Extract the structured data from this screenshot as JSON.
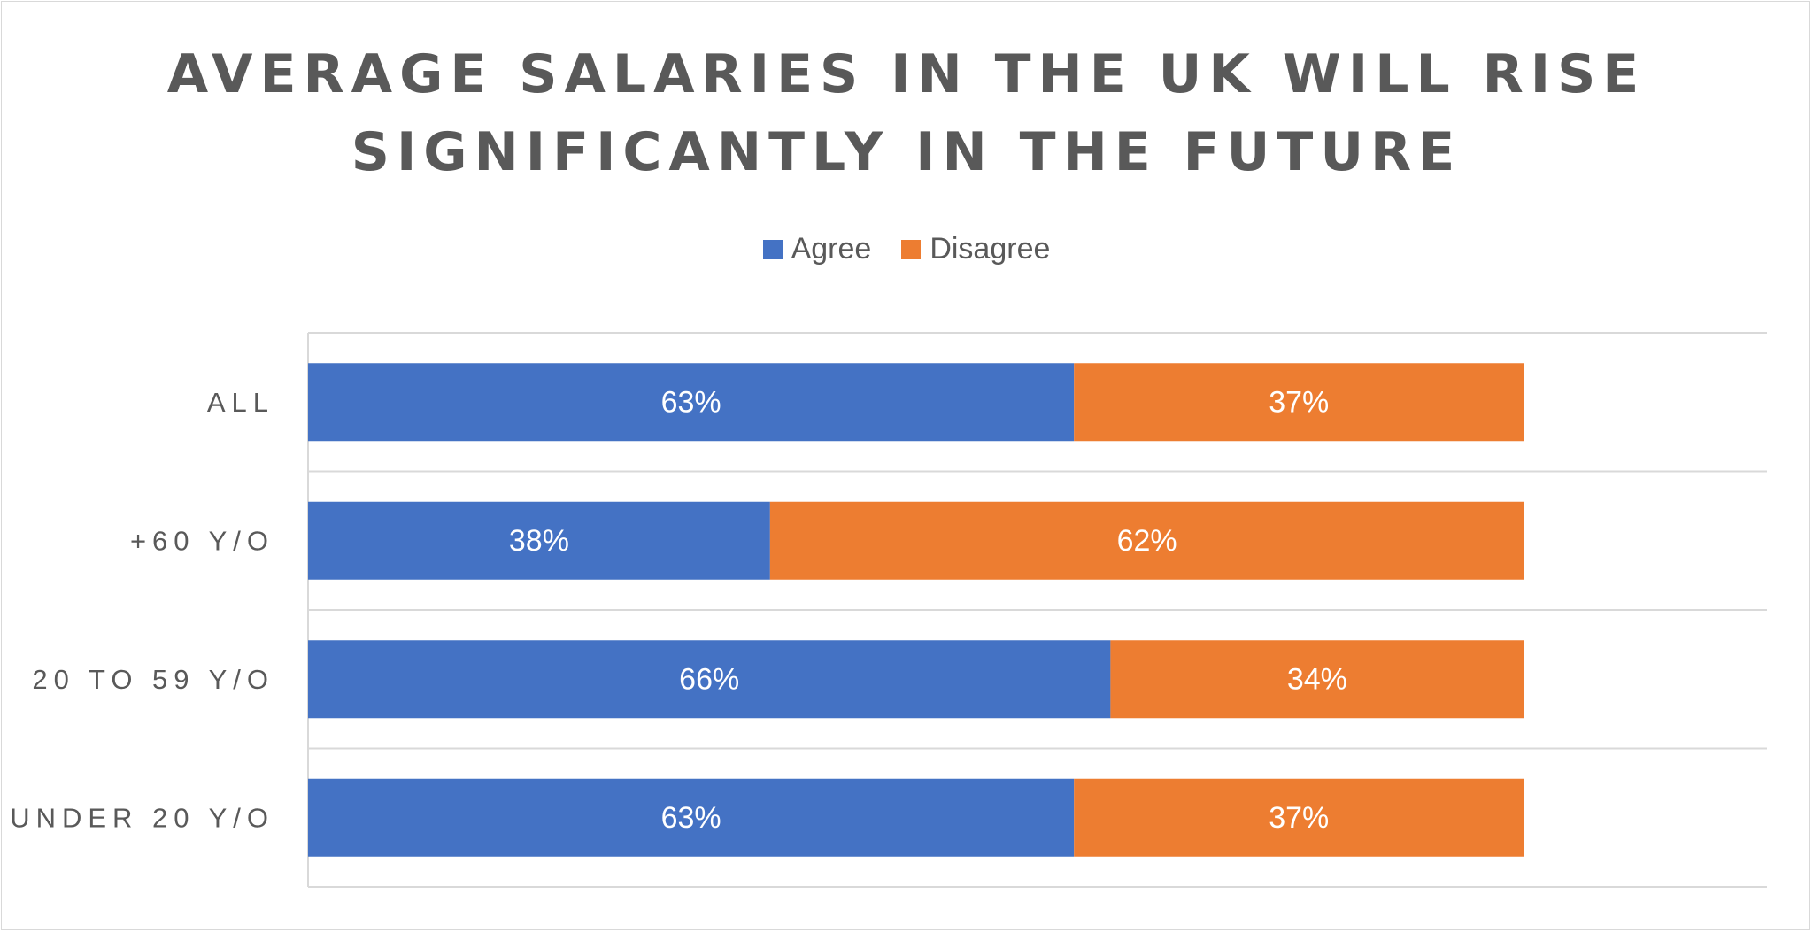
{
  "chart_data": {
    "type": "bar",
    "orientation": "horizontal",
    "stacked": true,
    "title_lines": [
      "AVERAGE SALARIES IN THE UK WILL RISE",
      "SIGNIFICANTLY IN THE FUTURE"
    ],
    "categories": [
      "ALL",
      "+60 Y/O",
      "20 TO 59 Y/O",
      "UNDER 20 Y/O"
    ],
    "series": [
      {
        "name": "Agree",
        "color": "#4472c4",
        "values": [
          63,
          38,
          66,
          63
        ],
        "labels": [
          "63%",
          "38%",
          "66%",
          "63%"
        ]
      },
      {
        "name": "Disagree",
        "color": "#ed7d31",
        "values": [
          37,
          62,
          34,
          37
        ],
        "labels": [
          "37%",
          "62%",
          "34%",
          "37%"
        ]
      }
    ],
    "xlim": [
      0,
      120
    ],
    "grid": true,
    "legend_position": "top"
  }
}
